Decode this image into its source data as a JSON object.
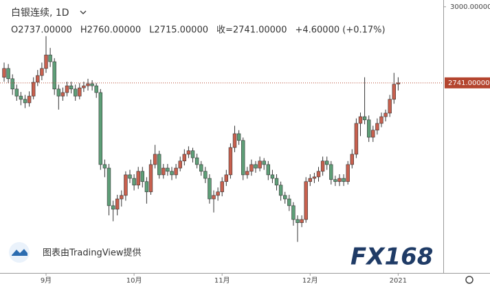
{
  "chart_data": {
    "type": "candlestick",
    "title": "白银连续, 1D",
    "legend_values": [
      "O2737.00000",
      "H2760.00000",
      "L2715.00000",
      "收=2741.00000",
      "+4.60000 (+0.17%)"
    ],
    "watermark": "图表由TradingView提供",
    "logo": "FX168",
    "up_color": "#c8604e",
    "down_color": "#5e9f78",
    "categories": [
      null,
      null,
      null,
      null,
      null,
      null,
      null,
      null,
      null,
      null,
      "9月",
      null,
      null,
      null,
      null,
      null,
      null,
      null,
      null,
      null,
      null,
      null,
      null,
      null,
      null,
      null,
      null,
      null,
      null,
      null,
      null,
      "10月",
      null,
      null,
      null,
      null,
      null,
      null,
      null,
      null,
      null,
      null,
      null,
      null,
      null,
      null,
      null,
      null,
      null,
      null,
      null,
      null,
      "11月",
      null,
      null,
      null,
      null,
      null,
      null,
      null,
      null,
      null,
      null,
      null,
      null,
      null,
      null,
      null,
      null,
      null,
      null,
      null,
      null,
      "12月",
      null,
      null,
      null,
      null,
      null,
      null,
      null,
      null,
      null,
      null,
      null,
      null,
      null,
      null,
      null,
      null,
      null,
      null,
      null,
      null,
      "2021"
    ],
    "open": [
      2760,
      2790,
      2755,
      2720,
      2696,
      2685,
      2673,
      2696,
      2743,
      2766,
      2790,
      2836,
      2813,
      2720,
      2696,
      2708,
      2731,
      2720,
      2696,
      2724,
      2731,
      2738,
      2731,
      2708,
      2463,
      2451,
      2323,
      2311,
      2346,
      2358,
      2428,
      2416,
      2393,
      2440,
      2405,
      2370,
      2463,
      2498,
      2428,
      2451,
      2440,
      2428,
      2451,
      2475,
      2498,
      2510,
      2486,
      2463,
      2440,
      2416,
      2346,
      2358,
      2370,
      2405,
      2428,
      2521,
      2568,
      2545,
      2428,
      2440,
      2463,
      2451,
      2475,
      2463,
      2428,
      2416,
      2393,
      2358,
      2346,
      2323,
      2276,
      2265,
      2276,
      2405,
      2416,
      2421,
      2440,
      2475,
      2463,
      2412,
      2405,
      2416,
      2405,
      2463,
      2498,
      2603,
      2626,
      2615,
      2556,
      2580,
      2603,
      2626,
      2638,
      2685,
      2737
    ],
    "high": [
      2810,
      2805,
      2770,
      2735,
      2710,
      2700,
      2712,
      2760,
      2785,
      2810,
      2900,
      2860,
      2825,
      2735,
      2725,
      2745,
      2745,
      2735,
      2740,
      2745,
      2755,
      2750,
      2740,
      2720,
      2480,
      2465,
      2340,
      2360,
      2375,
      2440,
      2445,
      2430,
      2455,
      2455,
      2420,
      2480,
      2530,
      2510,
      2465,
      2465,
      2455,
      2465,
      2490,
      2515,
      2525,
      2520,
      2500,
      2475,
      2455,
      2430,
      2375,
      2385,
      2420,
      2445,
      2535,
      2595,
      2580,
      2555,
      2455,
      2480,
      2475,
      2490,
      2485,
      2475,
      2445,
      2430,
      2405,
      2370,
      2360,
      2335,
      2290,
      2290,
      2420,
      2430,
      2435,
      2455,
      2490,
      2490,
      2475,
      2425,
      2430,
      2430,
      2475,
      2515,
      2620,
      2640,
      2760,
      2630,
      2595,
      2620,
      2640,
      2650,
      2700,
      2775,
      2760
    ],
    "low": [
      2745,
      2740,
      2700,
      2680,
      2665,
      2655,
      2660,
      2685,
      2730,
      2750,
      2775,
      2795,
      2700,
      2650,
      2680,
      2695,
      2705,
      2680,
      2685,
      2710,
      2715,
      2715,
      2690,
      2445,
      2420,
      2290,
      2270,
      2290,
      2320,
      2340,
      2400,
      2375,
      2380,
      2385,
      2330,
      2360,
      2450,
      2415,
      2415,
      2425,
      2410,
      2415,
      2440,
      2460,
      2485,
      2470,
      2450,
      2425,
      2400,
      2330,
      2300,
      2340,
      2355,
      2390,
      2415,
      2505,
      2530,
      2410,
      2415,
      2425,
      2435,
      2440,
      2445,
      2410,
      2400,
      2375,
      2340,
      2330,
      2305,
      2255,
      2200,
      2250,
      2265,
      2390,
      2400,
      2405,
      2425,
      2445,
      2395,
      2390,
      2390,
      2390,
      2395,
      2450,
      2485,
      2560,
      2600,
      2540,
      2540,
      2565,
      2590,
      2610,
      2625,
      2670,
      2715
    ],
    "close": [
      2790,
      2755,
      2720,
      2696,
      2685,
      2673,
      2696,
      2743,
      2766,
      2790,
      2836,
      2813,
      2720,
      2696,
      2708,
      2731,
      2720,
      2696,
      2724,
      2731,
      2738,
      2731,
      2708,
      2463,
      2451,
      2323,
      2311,
      2346,
      2358,
      2428,
      2416,
      2393,
      2440,
      2405,
      2370,
      2463,
      2498,
      2428,
      2451,
      2440,
      2428,
      2451,
      2475,
      2498,
      2510,
      2486,
      2463,
      2440,
      2416,
      2346,
      2358,
      2370,
      2405,
      2428,
      2521,
      2568,
      2545,
      2428,
      2440,
      2463,
      2451,
      2475,
      2463,
      2428,
      2416,
      2393,
      2358,
      2346,
      2323,
      2276,
      2265,
      2276,
      2405,
      2416,
      2421,
      2440,
      2475,
      2463,
      2412,
      2405,
      2416,
      2405,
      2463,
      2498,
      2603,
      2626,
      2615,
      2556,
      2580,
      2603,
      2626,
      2638,
      2685,
      2736.4,
      2741
    ],
    "last_price": {
      "value": 2741,
      "label": "2741.00000"
    },
    "last_price_color": "#b4452f",
    "ylim": [
      2094,
      3023
    ],
    "yticks": [
      {
        "value": 3000,
        "label": "3000.00000"
      }
    ]
  }
}
